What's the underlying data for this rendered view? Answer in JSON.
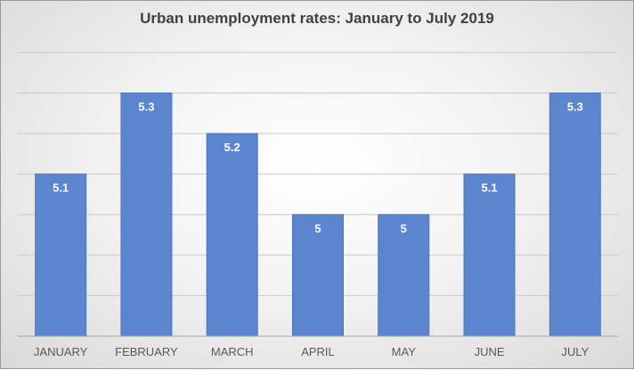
{
  "chart_data": {
    "type": "bar",
    "title": "Urban unemployment rates: January to July 2019",
    "categories": [
      "JANUARY",
      "FEBRUARY",
      "MARCH",
      "APRIL",
      "MAY",
      "JUNE",
      "JULY"
    ],
    "values": [
      5.1,
      5.3,
      5.2,
      5,
      5,
      5.1,
      5.3
    ],
    "data_labels": [
      "5.1",
      "5.3",
      "5.2",
      "5",
      "5",
      "5.1",
      "5.3"
    ],
    "xlabel": "",
    "ylabel": "",
    "ylim": [
      4.7,
      5.3
    ],
    "grid": true,
    "bar_color": "#5b85cf",
    "label_color": "#ffffff"
  }
}
